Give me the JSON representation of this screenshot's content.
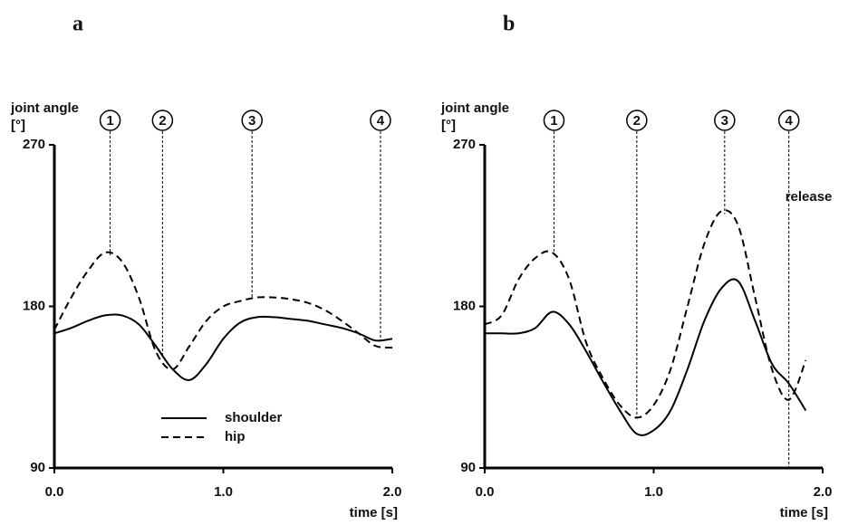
{
  "chart_data": [
    {
      "type": "line",
      "panel": "a",
      "ylabel": "joint angle",
      "yunit": "[°]",
      "xlabel": "time [s]",
      "x": [
        0,
        0.1,
        0.2,
        0.3,
        0.4,
        0.5,
        0.6,
        0.7,
        0.8,
        0.9,
        1.0,
        1.1,
        1.2,
        1.3,
        1.4,
        1.5,
        1.6,
        1.7,
        1.8,
        1.9,
        2.0
      ],
      "series": [
        {
          "name": "shoulder",
          "color": "#000000",
          "dash": "solid",
          "values": [
            165,
            168,
            172,
            175,
            175,
            170,
            158,
            145,
            139,
            148,
            162,
            171,
            174,
            174,
            173,
            172,
            170,
            168,
            165,
            161,
            162
          ]
        },
        {
          "name": "hip",
          "color": "#000000",
          "dash": "dashed",
          "values": [
            167,
            185,
            200,
            210,
            205,
            185,
            155,
            145,
            158,
            172,
            180,
            183,
            185,
            185,
            184,
            182,
            178,
            172,
            165,
            158,
            157
          ]
        }
      ],
      "events": [
        {
          "value": 0.33,
          "label": "1"
        },
        {
          "value": 0.64,
          "label": "2"
        },
        {
          "value": 1.17,
          "label": "3"
        },
        {
          "value": 1.93,
          "label": "4"
        }
      ],
      "xlim": [
        0,
        2
      ],
      "xticks": [
        {
          "value": 0,
          "label": "0.0"
        },
        {
          "value": 1,
          "label": "1.0"
        },
        {
          "value": 2,
          "label": "2.0"
        }
      ],
      "ylim": [
        90,
        270
      ],
      "yticks": [
        90,
        180,
        270
      ],
      "legend": true
    },
    {
      "type": "line",
      "panel": "b",
      "ylabel": "joint angle",
      "yunit": "[°]",
      "xlabel": "time [s]",
      "x": [
        0,
        0.1,
        0.2,
        0.3,
        0.4,
        0.5,
        0.6,
        0.7,
        0.8,
        0.9,
        1.0,
        1.1,
        1.2,
        1.3,
        1.4,
        1.5,
        1.6,
        1.7,
        1.8,
        1.9
      ],
      "series": [
        {
          "color": "#000000",
          "dash": "solid",
          "values": [
            165,
            165,
            165,
            168,
            177,
            170,
            155,
            138,
            122,
            109,
            111,
            122,
            145,
            172,
            190,
            194,
            172,
            148,
            137,
            122
          ]
        },
        {
          "color": "#000000",
          "dash": "dashed",
          "values": [
            170,
            175,
            195,
            207,
            210,
            195,
            160,
            140,
            125,
            118,
            125,
            145,
            180,
            215,
            233,
            225,
            185,
            145,
            128,
            150
          ]
        }
      ],
      "events": [
        {
          "value": 0.41,
          "label": "1"
        },
        {
          "value": 0.9,
          "label": "2"
        },
        {
          "value": 1.42,
          "label": "3"
        },
        {
          "value": 1.8,
          "label": "4",
          "note": "release"
        }
      ],
      "xlim": [
        0,
        2
      ],
      "xticks": [
        {
          "value": 0,
          "label": "0.0"
        },
        {
          "value": 1,
          "label": "1.0"
        },
        {
          "value": 2,
          "label": "2.0"
        }
      ],
      "ylim": [
        90,
        270
      ],
      "yticks": [
        90,
        180,
        270
      ],
      "legend": false
    }
  ]
}
